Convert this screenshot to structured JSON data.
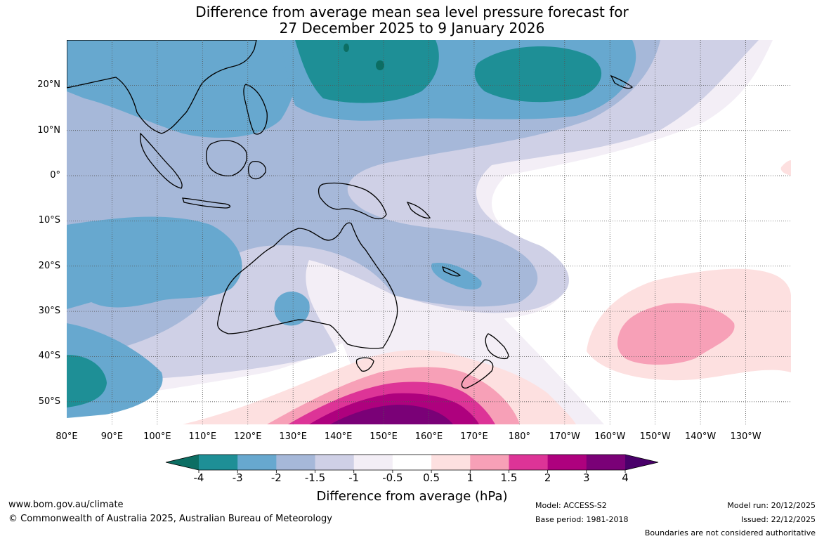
{
  "title": {
    "line1": "Difference from average mean sea level pressure forecast for",
    "line2": "27 December 2025 to 9 January 2026"
  },
  "axes": {
    "lat_labels": [
      "20°N",
      "10°N",
      "0°",
      "10°S",
      "20°S",
      "30°S",
      "40°S",
      "50°S"
    ],
    "lat_values": [
      20,
      10,
      0,
      -10,
      -20,
      -30,
      -40,
      -50
    ],
    "lon_labels": [
      "80°E",
      "90°E",
      "100°E",
      "110°E",
      "120°E",
      "130°E",
      "140°E",
      "150°E",
      "160°E",
      "170°E",
      "180°",
      "170°W",
      "160°W",
      "150°W",
      "140°W",
      "130°W"
    ],
    "lon_values": [
      80,
      90,
      100,
      110,
      120,
      130,
      140,
      150,
      160,
      170,
      180,
      190,
      200,
      210,
      220,
      230
    ],
    "lon_range": [
      80,
      240
    ],
    "lat_range": [
      -55,
      30
    ]
  },
  "colorbar": {
    "title": "Difference from average (hPa)",
    "tick_labels": [
      "-4",
      "-3",
      "-2",
      "-1.5",
      "-1",
      "-0.5",
      "0.5",
      "1",
      "1.5",
      "2",
      "3",
      "4"
    ],
    "bin_colors": [
      "#1e8f96",
      "#67a8cf",
      "#a6b8d9",
      "#cfd0e6",
      "#f3eef6",
      "#ffffff",
      "#fde0e0",
      "#f7a0b7",
      "#dd3497",
      "#ae017e",
      "#7a0177"
    ],
    "under_color": "#0c6e63",
    "over_color": "#49006a"
  },
  "footer": {
    "site": "www.bom.gov.au/climate",
    "copyright": "© Commonwealth of Australia 2025, Australian Bureau of Meteorology",
    "model": "Model: ACCESS-S2",
    "base_period": "Base period: 1981-2018",
    "model_run": "Model run: 20/12/2025",
    "issued": "Issued: 22/12/2025",
    "disclaimer": "Boundaries are not considered authoritative"
  }
}
